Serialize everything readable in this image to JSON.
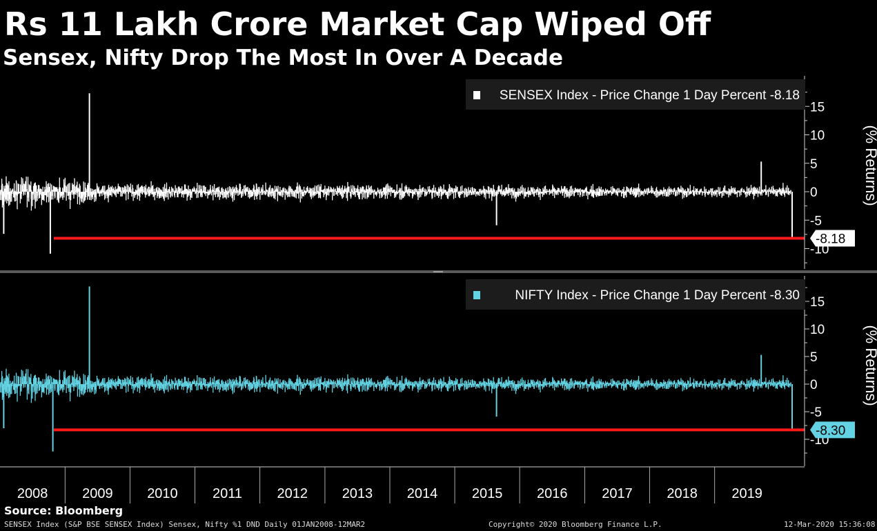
{
  "header": {
    "title": "Rs 11 Lakh Crore Market Cap Wiped Off",
    "subtitle": "Sensex, Nifty Drop The Most In Over A Decade"
  },
  "colors": {
    "background": "#000000",
    "sensex": "#ffffff",
    "nifty": "#63d3e3",
    "reference_line": "#ff1a1a",
    "legend_bg": "#1c1c1c"
  },
  "chart_data": [
    {
      "type": "bar",
      "name": "sensex-panel",
      "series": [
        {
          "name": "SENSEX Index - Price Change 1 Day Percent -8.18",
          "color": "#ffffff",
          "x": [
            "2008-01-22",
            "2008-10-10",
            "2009-05-18",
            "2015-08-24",
            "2019-09-20",
            "2020-03-12"
          ],
          "values": [
            -7.4,
            -10.9,
            17.3,
            -5.9,
            5.3,
            -8.18
          ]
        }
      ],
      "last_value_label": "-8.18",
      "reference_value": -8.18,
      "ylabel": "(% Returns)",
      "yticks": [
        "15",
        "10",
        "5",
        "0",
        "-5",
        "-10"
      ],
      "ylim": [
        -12,
        19
      ],
      "grid": false,
      "legend_position": "top-right"
    },
    {
      "type": "bar",
      "name": "nifty-panel",
      "series": [
        {
          "name": "NIFTY Index - Price Change 1 Day Percent -8.30",
          "color": "#63d3e3",
          "x": [
            "2008-01-22",
            "2008-10-24",
            "2009-05-18",
            "2015-08-24",
            "2019-09-20",
            "2020-03-12"
          ],
          "values": [
            -8.0,
            -12.2,
            17.7,
            -5.9,
            5.3,
            -8.3
          ]
        }
      ],
      "last_value_label": "-8.30",
      "reference_value": -8.3,
      "ylabel": "(% Returns)",
      "yticks": [
        "15",
        "10",
        "5",
        "0",
        "-5",
        "-10"
      ],
      "ylim": [
        -12,
        19
      ],
      "grid": false,
      "legend_position": "top-right"
    }
  ],
  "x_axis": {
    "labels": [
      "2008",
      "2009",
      "2010",
      "2011",
      "2012",
      "2013",
      "2014",
      "2015",
      "2016",
      "2017",
      "2018",
      "2019"
    ]
  },
  "footer": {
    "source": "Source: Bloomberg",
    "description": "SENSEX Index (S&P BSE SENSEX Index) Sensex, Nifty %1 DND  Daily 01JAN2008-12MAR2",
    "copyright": "Copyright© 2020 Bloomberg Finance L.P.",
    "timestamp": "12-Mar-2020 15:36:08"
  }
}
